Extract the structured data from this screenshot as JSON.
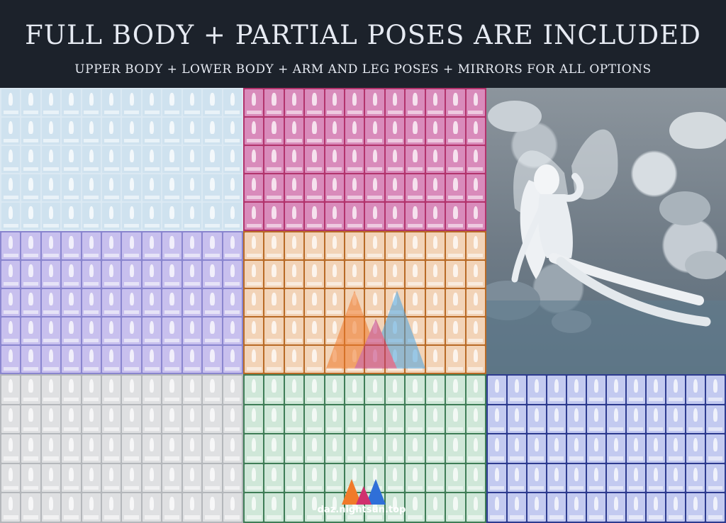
{
  "header": {
    "title": "FULL BODY + PARTIAL POSES ARE INCLUDED",
    "subtitle": "UPPER BODY + LOWER BODY + ARM AND LEG POSES + MIRRORS FOR ALL OPTIONS"
  },
  "panels": [
    {
      "id": "full-body",
      "tile_color": "#cfe2ef",
      "bg_color": "#dbe9f3"
    },
    {
      "id": "upper-body",
      "tile_color": "#d98bbb",
      "bg_color": "#b2336c"
    },
    {
      "id": "lower-body",
      "tile_color": "#c8c0ee",
      "bg_color": "#8a86cf"
    },
    {
      "id": "arm-poses",
      "tile_color": "#f2d3b7",
      "bg_color": "#b86a26"
    },
    {
      "id": "left-leg",
      "tile_color": "#dfe0e2",
      "bg_color": "#b4b7bb"
    },
    {
      "id": "right-arm",
      "tile_color": "#cfe7d8",
      "bg_color": "#3f7d57"
    },
    {
      "id": "right-leg",
      "tile_color": "#c3caf0",
      "bg_color": "#2d3b8f"
    }
  ],
  "render_image": {
    "description_icon": "fairy-render-image"
  },
  "watermark": {
    "text": "daz.nightsun.top"
  }
}
